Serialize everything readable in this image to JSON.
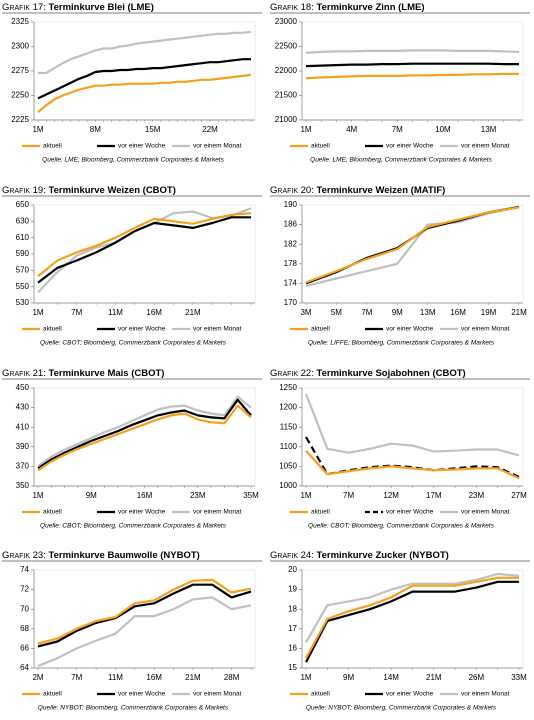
{
  "chart_data": [
    {
      "type": "line",
      "label": "Grafik 17:",
      "title": "Terminkurve Blei (LME)",
      "source": "Quelle: LME; Bloomberg, Commerzbank Corporates & Markets",
      "categories": [
        "1M",
        null,
        null,
        null,
        null,
        null,
        null,
        "8M",
        null,
        null,
        null,
        null,
        null,
        null,
        "15M",
        null,
        null,
        null,
        null,
        null,
        null,
        "22M",
        null,
        null,
        null,
        null,
        null
      ],
      "ylim": [
        2225,
        2325
      ],
      "yticks": [
        2225,
        2250,
        2275,
        2300,
        2325
      ],
      "series": [
        {
          "name": "aktuell",
          "color": "#f5a01e",
          "values": [
            2233,
            2240,
            2246,
            2250,
            2253,
            2256,
            2258,
            2260,
            2260,
            2261,
            2261,
            2262,
            2262,
            2262,
            2262,
            2263,
            2263,
            2264,
            2264,
            2265,
            2266,
            2266,
            2267,
            2268,
            2269,
            2270,
            2271
          ]
        },
        {
          "name": "vor einer Woche",
          "color": "#000000",
          "values": [
            2247,
            2251,
            2255,
            2259,
            2263,
            2267,
            2270,
            2274,
            2275,
            2275,
            2276,
            2276,
            2277,
            2277,
            2278,
            2278,
            2279,
            2280,
            2281,
            2282,
            2283,
            2284,
            2284,
            2285,
            2286,
            2287,
            2287
          ]
        },
        {
          "name": "vor einem Monat",
          "color": "#c0c0c0",
          "values": [
            2273,
            2273,
            2278,
            2283,
            2287,
            2290,
            2293,
            2296,
            2298,
            2298,
            2300,
            2301,
            2303,
            2304,
            2305,
            2306,
            2307,
            2308,
            2309,
            2310,
            2311,
            2312,
            2313,
            2313,
            2314,
            2314,
            2315
          ]
        }
      ]
    },
    {
      "type": "line",
      "label": "Grafik 18:",
      "title": "Terminkurve Zinn (LME)",
      "source": "Quelle: LME; Bloomberg, Commerzbank Corporates & Markets",
      "categories": [
        "1M",
        null,
        null,
        "4M",
        null,
        null,
        "7M",
        null,
        null,
        "10M",
        null,
        null,
        "13M",
        null,
        null
      ],
      "ylim": [
        21000,
        23000
      ],
      "yticks": [
        21000,
        21500,
        22000,
        22500,
        23000
      ],
      "series": [
        {
          "name": "aktuell",
          "color": "#f5a01e",
          "values": [
            21850,
            21870,
            21880,
            21890,
            21900,
            21900,
            21900,
            21910,
            21910,
            21920,
            21920,
            21930,
            21930,
            21940,
            21940
          ]
        },
        {
          "name": "vor einer Woche",
          "color": "#000000",
          "values": [
            22100,
            22110,
            22120,
            22130,
            22130,
            22140,
            22140,
            22150,
            22150,
            22150,
            22150,
            22150,
            22150,
            22140,
            22140
          ]
        },
        {
          "name": "vor einem Monat",
          "color": "#c0c0c0",
          "values": [
            22370,
            22390,
            22400,
            22400,
            22410,
            22410,
            22410,
            22420,
            22420,
            22420,
            22410,
            22410,
            22410,
            22400,
            22390
          ]
        }
      ]
    },
    {
      "type": "line",
      "label": "Grafik 19:",
      "title": "Terminkurve Weizen (CBOT)",
      "source": "Quelle: CBOT; Bloomberg, Commerzbank Corporates & Markets",
      "categories": [
        "1M",
        null,
        "7M",
        null,
        "11M",
        null,
        "16M",
        null,
        "21M",
        null,
        null,
        null
      ],
      "ylim": [
        530,
        650
      ],
      "yticks": [
        530,
        550,
        570,
        590,
        610,
        630,
        650
      ],
      "series": [
        {
          "name": "aktuell",
          "color": "#f5a01e",
          "values": [
            563,
            582,
            592,
            600,
            610,
            622,
            633,
            630,
            627,
            633,
            638,
            640
          ]
        },
        {
          "name": "vor einer Woche",
          "color": "#000000",
          "values": [
            555,
            573,
            582,
            592,
            604,
            618,
            628,
            625,
            622,
            628,
            635,
            635
          ]
        },
        {
          "name": "vor einem Monat",
          "color": "#c0c0c0",
          "values": [
            543,
            568,
            588,
            598,
            604,
            618,
            628,
            640,
            642,
            634,
            637,
            646
          ]
        }
      ]
    },
    {
      "type": "line",
      "label": "Grafik 20:",
      "title": "Terminkurve Weizen (MATIF)",
      "source": "Quelle: LIFFE; Bloomberg, Commerzbank Corporates & Markets",
      "categories": [
        "3M",
        "5M",
        "7M",
        "9M",
        "13M",
        "16M",
        "19M",
        "21M"
      ],
      "ylim": [
        170,
        190
      ],
      "yticks": [
        170,
        174,
        178,
        182,
        186,
        190
      ],
      "series": [
        {
          "name": "aktuell",
          "color": "#f5a01e",
          "values": [
            174.2,
            176.5,
            179,
            181,
            185.5,
            187,
            188.5,
            189.5
          ]
        },
        {
          "name": "vor einer Woche",
          "color": "#000000",
          "values": [
            174,
            176.3,
            179.2,
            181.2,
            185.3,
            186.8,
            188.5,
            189.6
          ]
        },
        {
          "name": "vor einem Monat",
          "color": "#c0c0c0",
          "values": [
            173.5,
            175,
            176.5,
            178,
            186,
            186.5,
            188.3,
            189.6
          ]
        }
      ]
    },
    {
      "type": "line",
      "label": "Grafik 21:",
      "title": "Terminkurve Mais (CBOT)",
      "source": "Quelle: CBOT; Bloomberg, Commerzbank Corporates & Markets",
      "categories": [
        "1M",
        null,
        null,
        null,
        "9M",
        null,
        null,
        null,
        "16M",
        null,
        null,
        null,
        "23M",
        null,
        null,
        null,
        "35M"
      ],
      "ylim": [
        350,
        450
      ],
      "yticks": [
        350,
        370,
        390,
        410,
        430,
        450
      ],
      "series": [
        {
          "name": "aktuell",
          "color": "#f5a01e",
          "values": [
            366,
            375,
            382,
            388,
            393,
            398,
            403,
            408,
            413,
            418,
            422,
            424,
            418,
            415,
            414,
            432,
            420
          ]
        },
        {
          "name": "vor einer Woche",
          "color": "#000000",
          "values": [
            368,
            377,
            384,
            390,
            396,
            401,
            406,
            412,
            417,
            422,
            425,
            427,
            422,
            420,
            419,
            438,
            422
          ]
        },
        {
          "name": "vor einem Monat",
          "color": "#c0c0c0",
          "values": [
            370,
            380,
            387,
            393,
            399,
            405,
            410,
            416,
            422,
            428,
            431,
            432,
            427,
            424,
            422,
            441,
            430
          ]
        }
      ]
    },
    {
      "type": "line",
      "label": "Grafik 22:",
      "title": "Terminkurve Sojabohnen (CBOT)",
      "source": "Quelle: CBOT; Bloomberg, Commerzbank Corporates & Markets",
      "categories": [
        "1M",
        null,
        "7M",
        null,
        "12M",
        null,
        "17M",
        null,
        "23M",
        null,
        "27M"
      ],
      "ylim": [
        1000,
        1250
      ],
      "yticks": [
        1000,
        1050,
        1100,
        1150,
        1200,
        1250
      ],
      "series": [
        {
          "name": "aktuell",
          "color": "#f5a01e",
          "values": [
            1090,
            1030,
            1038,
            1045,
            1050,
            1045,
            1040,
            1042,
            1045,
            1045,
            1020
          ]
        },
        {
          "name": "vor einer Woche",
          "color": "#000000",
          "dash": true,
          "values": [
            1125,
            1030,
            1040,
            1048,
            1052,
            1048,
            1040,
            1045,
            1050,
            1048,
            1023
          ]
        },
        {
          "name": "vor einem Monat",
          "color": "#c0c0c0",
          "values": [
            1235,
            1095,
            1085,
            1095,
            1108,
            1103,
            1088,
            1090,
            1093,
            1093,
            1078
          ]
        }
      ]
    },
    {
      "type": "line",
      "label": "Grafik 23:",
      "title": "Terminkurve Baumwolle (NYBOT)",
      "source": "Quelle: NYBOT; Bloomberg, Commerzbank Corporates & Markets",
      "categories": [
        "2M",
        null,
        "7M",
        null,
        "11M",
        null,
        "16M",
        null,
        "21M",
        null,
        "28M",
        null
      ],
      "ylim": [
        64,
        74
      ],
      "yticks": [
        64,
        66,
        68,
        70,
        72,
        74
      ],
      "series": [
        {
          "name": "aktuell",
          "color": "#f5a01e",
          "values": [
            66.5,
            67,
            68,
            68.8,
            69.2,
            70.6,
            70.9,
            72,
            72.9,
            73,
            71.7,
            72.1
          ]
        },
        {
          "name": "vor einer Woche",
          "color": "#000000",
          "values": [
            66.2,
            66.7,
            67.8,
            68.6,
            69.1,
            70.3,
            70.6,
            71.6,
            72.5,
            72.5,
            71.2,
            71.8
          ]
        },
        {
          "name": "vor einem Monat",
          "color": "#c0c0c0",
          "values": [
            64.2,
            65,
            66,
            66.8,
            67.5,
            69.3,
            69.3,
            70,
            71,
            71.2,
            70,
            70.4
          ]
        }
      ]
    },
    {
      "type": "line",
      "label": "Grafik 24:",
      "title": "Terminkurve Zucker (NYBOT)",
      "source": "Quelle: NYBOT; Bloomberg, Commerzbank Corporates & Markets",
      "categories": [
        "1M",
        null,
        "9M",
        null,
        "14M",
        null,
        "21M",
        null,
        "26M",
        null,
        "33M"
      ],
      "ylim": [
        15,
        20
      ],
      "yticks": [
        15,
        16,
        17,
        18,
        19,
        20
      ],
      "series": [
        {
          "name": "aktuell",
          "color": "#f5a01e",
          "values": [
            15.5,
            17.5,
            17.9,
            18.2,
            18.6,
            19.2,
            19.2,
            19.2,
            19.4,
            19.6,
            19.6
          ]
        },
        {
          "name": "vor einer Woche",
          "color": "#000000",
          "values": [
            15.3,
            17.4,
            17.7,
            18,
            18.4,
            18.9,
            18.9,
            18.9,
            19.1,
            19.4,
            19.4
          ]
        },
        {
          "name": "vor einem Monat",
          "color": "#c0c0c0",
          "values": [
            16.3,
            18.2,
            18.4,
            18.6,
            19,
            19.3,
            19.3,
            19.3,
            19.5,
            19.8,
            19.7
          ]
        }
      ]
    }
  ]
}
